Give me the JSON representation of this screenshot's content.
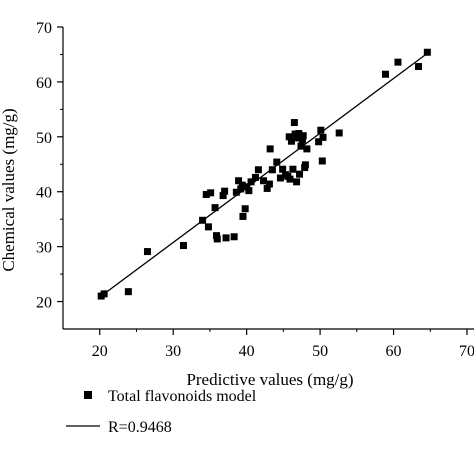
{
  "chart_data": {
    "type": "scatter",
    "xlabel": "Predictive values (mg/g)",
    "ylabel": "Chemical values (mg/g)",
    "xlim": [
      15,
      70
    ],
    "ylim": [
      15,
      70
    ],
    "xticks": [
      20,
      30,
      40,
      50,
      60,
      70
    ],
    "yticks": [
      20,
      30,
      40,
      50,
      60,
      70
    ],
    "tick_labels_x": [
      "20",
      "30",
      "40",
      "50",
      "60",
      "70"
    ],
    "tick_labels_y": [
      "20",
      "30",
      "40",
      "50",
      "60",
      "70"
    ],
    "grid": false,
    "legend_placement": "bottom",
    "series": [
      {
        "name": "Total flavonoids model",
        "marker": "square",
        "color": "#000000",
        "points": [
          [
            20.2,
            21.0
          ],
          [
            20.6,
            21.4
          ],
          [
            23.9,
            21.8
          ],
          [
            26.5,
            29.1
          ],
          [
            31.4,
            30.2
          ],
          [
            34.0,
            34.8
          ],
          [
            34.5,
            39.5
          ],
          [
            34.8,
            33.6
          ],
          [
            35.1,
            39.8
          ],
          [
            35.7,
            37.1
          ],
          [
            35.9,
            32.0
          ],
          [
            36.0,
            31.4
          ],
          [
            36.8,
            39.3
          ],
          [
            37.0,
            40.1
          ],
          [
            37.2,
            31.6
          ],
          [
            38.3,
            31.8
          ],
          [
            38.6,
            39.9
          ],
          [
            38.9,
            42.0
          ],
          [
            39.2,
            40.5
          ],
          [
            39.4,
            41.2
          ],
          [
            39.5,
            35.5
          ],
          [
            39.8,
            36.9
          ],
          [
            40.0,
            40.9
          ],
          [
            40.3,
            40.2
          ],
          [
            40.6,
            41.8
          ],
          [
            41.2,
            42.6
          ],
          [
            41.6,
            44.0
          ],
          [
            42.3,
            42.0
          ],
          [
            42.8,
            40.6
          ],
          [
            43.1,
            41.4
          ],
          [
            43.2,
            47.8
          ],
          [
            43.5,
            44.0
          ],
          [
            44.1,
            45.4
          ],
          [
            44.6,
            42.5
          ],
          [
            44.9,
            44.1
          ],
          [
            45.3,
            43.1
          ],
          [
            45.6,
            42.8
          ],
          [
            45.8,
            50.0
          ],
          [
            45.9,
            42.3
          ],
          [
            46.1,
            49.2
          ],
          [
            46.3,
            44.1
          ],
          [
            46.5,
            52.6
          ],
          [
            46.6,
            50.5
          ],
          [
            46.8,
            41.8
          ],
          [
            46.9,
            49.8
          ],
          [
            47.1,
            50.6
          ],
          [
            47.2,
            43.2
          ],
          [
            47.4,
            48.3
          ],
          [
            47.6,
            49.4
          ],
          [
            47.7,
            50.2
          ],
          [
            47.9,
            44.4
          ],
          [
            48.0,
            44.9
          ],
          [
            48.2,
            47.8
          ],
          [
            49.8,
            49.1
          ],
          [
            50.1,
            51.2
          ],
          [
            50.3,
            45.6
          ],
          [
            50.4,
            49.9
          ],
          [
            52.6,
            50.7
          ],
          [
            58.9,
            61.4
          ],
          [
            60.6,
            63.6
          ],
          [
            63.4,
            62.8
          ],
          [
            64.6,
            65.4
          ]
        ]
      },
      {
        "name": "R=0.9468",
        "kind": "fit-line",
        "color": "#000000",
        "points": [
          [
            20.0,
            20.8
          ],
          [
            65.0,
            65.6
          ]
        ]
      }
    ]
  }
}
